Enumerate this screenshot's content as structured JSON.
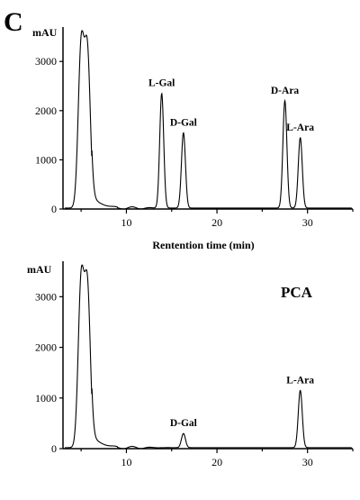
{
  "panel_letter": "C",
  "chart_data": [
    {
      "type": "line",
      "ylabel": "mAU",
      "xlabel": "Rentention time (min)",
      "tag": "",
      "xlim": [
        3,
        35
      ],
      "ylim": [
        0,
        3700
      ],
      "x_ticks": [
        10,
        20,
        30
      ],
      "y_ticks": [
        0,
        1000,
        2000,
        3000
      ],
      "baseline": 20,
      "peaks": [
        {
          "label": "",
          "x": 5.0,
          "y": 3250
        },
        {
          "label": "",
          "x": 5.7,
          "y": 3120
        },
        {
          "label": "L-Gal",
          "x": 13.9,
          "y": 2350
        },
        {
          "label": "D-Gal",
          "x": 16.3,
          "y": 1550
        },
        {
          "label": "D-Ara",
          "x": 27.5,
          "y": 2200
        },
        {
          "label": "L-Ara",
          "x": 29.2,
          "y": 1450
        }
      ]
    },
    {
      "type": "line",
      "ylabel": "mAU",
      "xlabel": "",
      "tag": "PCA",
      "xlim": [
        3,
        35
      ],
      "ylim": [
        0,
        3700
      ],
      "x_ticks": [
        10,
        20,
        30
      ],
      "y_ticks": [
        0,
        1000,
        2000,
        3000
      ],
      "baseline": 20,
      "peaks": [
        {
          "label": "",
          "x": 5.0,
          "y": 3250
        },
        {
          "label": "",
          "x": 5.7,
          "y": 3120
        },
        {
          "label": "D-Gal",
          "x": 16.3,
          "y": 300
        },
        {
          "label": "L-Ara",
          "x": 29.2,
          "y": 1150
        }
      ]
    }
  ]
}
